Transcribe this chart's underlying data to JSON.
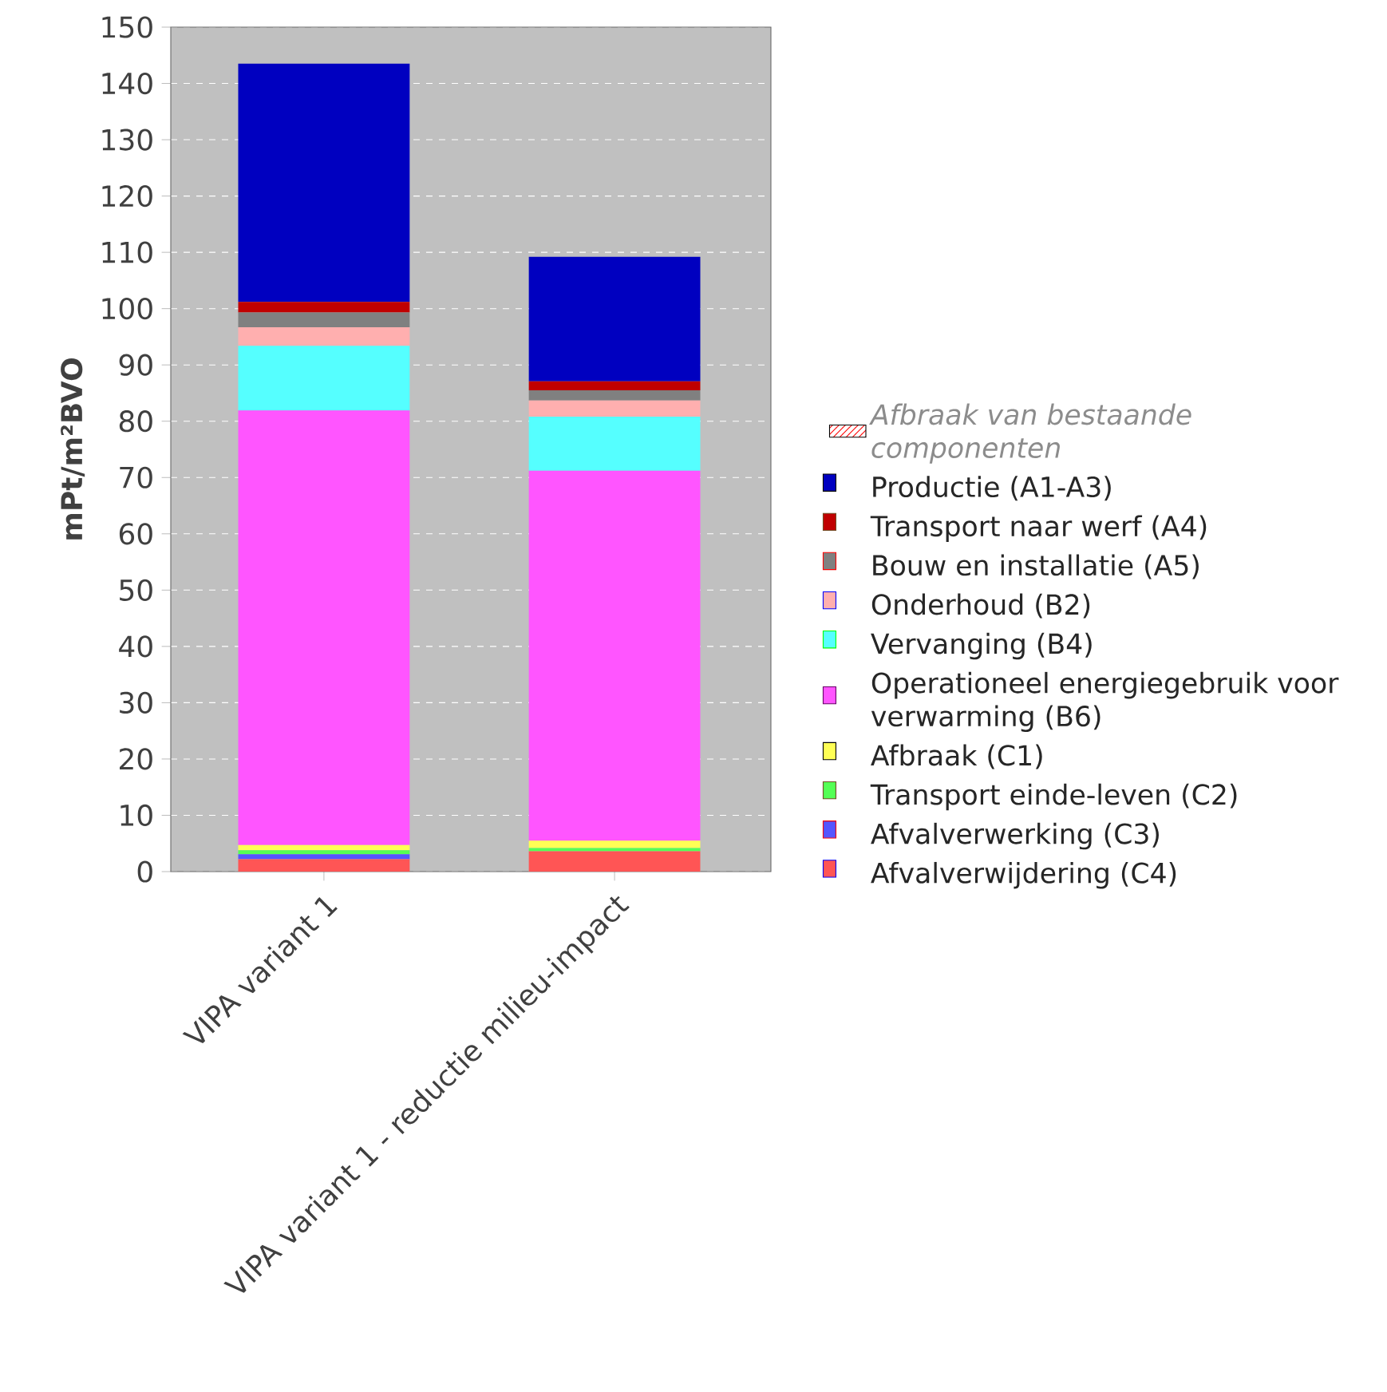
{
  "chart_data": {
    "type": "bar",
    "stacked": true,
    "ylabel": "mPt/m²BVO",
    "categories": [
      "VIPA variant 1",
      "VIPA variant 1 - reductie milieu-impact"
    ],
    "ylim": [
      0,
      150
    ],
    "yticks": [
      0,
      10,
      20,
      30,
      40,
      50,
      60,
      70,
      80,
      90,
      100,
      110,
      120,
      130,
      140,
      150
    ],
    "grid": "y",
    "legend": "right",
    "series": [
      {
        "name": "Afvalverwijdering (C4)",
        "color": "#ff5555",
        "values": [
          2.2,
          3.6
        ]
      },
      {
        "name": "Afvalverwerking (C3)",
        "color": "#5555ff",
        "values": [
          0.9,
          0
        ]
      },
      {
        "name": "Transport einde-leven (C2)",
        "color": "#55ff55",
        "values": [
          0.7,
          0.6
        ]
      },
      {
        "name": "Afbraak (C1)",
        "color": "#ffff55",
        "values": [
          0.9,
          1.3
        ]
      },
      {
        "name": "Operationeel energiegebruik voor verwarming (B6)",
        "color": "#ff55ff",
        "values": [
          77.2,
          65.7
        ]
      },
      {
        "name": "Vervanging (B4)",
        "color": "#55ffff",
        "values": [
          11.5,
          9.6
        ]
      },
      {
        "name": "Onderhoud (B2)",
        "color": "#ffafaf",
        "values": [
          3.3,
          2.9
        ]
      },
      {
        "name": "Bouw en installatie (A5)",
        "color": "#808080",
        "values": [
          2.6,
          1.8
        ]
      },
      {
        "name": "Transport naar werf (A4)",
        "color": "#c00000",
        "values": [
          1.9,
          1.6
        ]
      },
      {
        "name": "Productie (A1-A3)",
        "color": "#0000c0",
        "values": [
          42.3,
          22.1
        ]
      },
      {
        "name": "Afbraak van bestaande componenten",
        "color": "#ff0000",
        "values": [
          null,
          null
        ]
      }
    ]
  }
}
